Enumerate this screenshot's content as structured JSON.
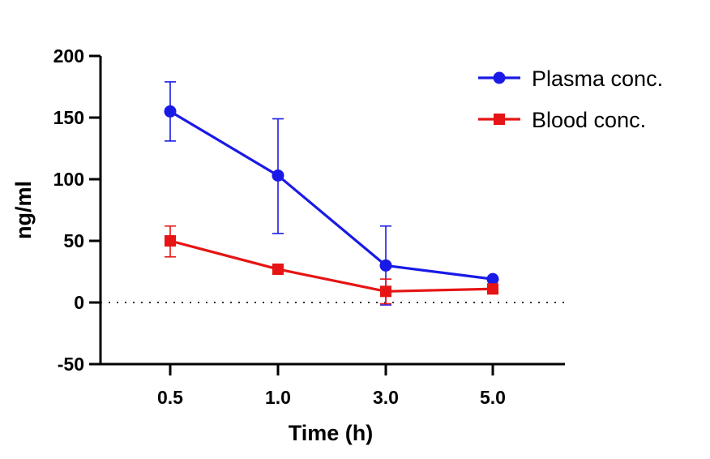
{
  "chart_data": {
    "type": "line",
    "title": "",
    "xlabel": "Time (h)",
    "ylabel": "ng/ml",
    "categories": [
      "0.5",
      "1.0",
      "3.0",
      "5.0"
    ],
    "ylim": [
      -50,
      200
    ],
    "yticks": [
      -50,
      0,
      50,
      100,
      150,
      200
    ],
    "ytick_labels": [
      "-50",
      "0",
      "50",
      "100",
      "150",
      "200"
    ],
    "reference_line": {
      "y": 0,
      "style": "dotted"
    },
    "legend_position": "top-right",
    "series": [
      {
        "name": "Plasma conc.",
        "color": "#1a1ae6",
        "marker": "circle",
        "values": [
          155,
          103,
          30,
          19
        ],
        "error_low": [
          131,
          56,
          -2,
          19
        ],
        "error_high": [
          179,
          149,
          62,
          19
        ]
      },
      {
        "name": "Blood conc.",
        "color": "#e61414",
        "marker": "square",
        "values": [
          50,
          27,
          9,
          11
        ],
        "error_low": [
          37,
          27,
          -1,
          11
        ],
        "error_high": [
          62,
          27,
          19,
          11
        ]
      }
    ]
  }
}
